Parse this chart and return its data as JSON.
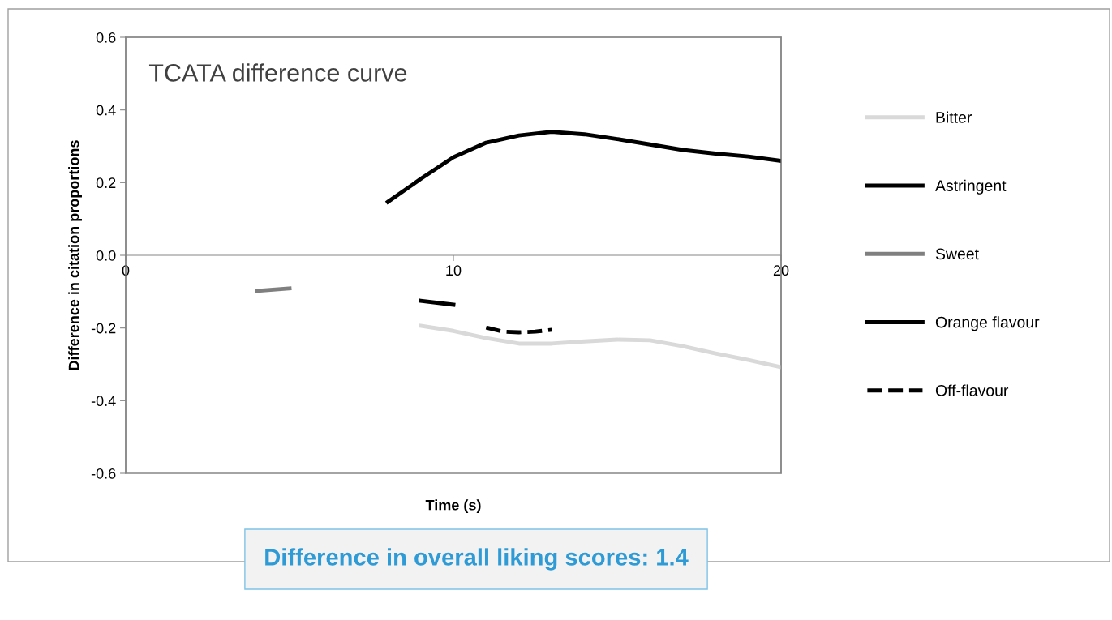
{
  "chart_data": {
    "type": "line",
    "title": "TCATA difference curve",
    "xlabel": "Time (s)",
    "ylabel": "Difference in citation proportions",
    "xlim": [
      0,
      20
    ],
    "xticks": [
      0,
      10,
      20
    ],
    "ylim": [
      -0.6,
      0.6
    ],
    "yticks": [
      0.6,
      0.4,
      0.2,
      {
        "value": 0,
        "label": "0.0"
      },
      -0.2,
      -0.4,
      -0.6
    ],
    "legend": "right",
    "grid": false,
    "marker": "none",
    "series": [
      {
        "name": "Bitter",
        "color": "#d9d9d9",
        "x": [
          9,
          10,
          11,
          12,
          13,
          14,
          15,
          16,
          17,
          18,
          19,
          20
        ],
        "values": [
          -0.194,
          -0.208,
          -0.228,
          -0.243,
          -0.243,
          -0.237,
          -0.232,
          -0.234,
          -0.25,
          -0.27,
          -0.288,
          -0.308
        ]
      },
      {
        "name": "Astringent",
        "color": "#000000",
        "x": [
          9,
          10
        ],
        "values": [
          -0.125,
          -0.136
        ]
      },
      {
        "name": "Sweet",
        "color": "#7f7f7f",
        "x": [
          4,
          5
        ],
        "values": [
          -0.098,
          -0.091
        ]
      },
      {
        "name": "Orange flavour",
        "color": "#000000",
        "x": [
          8,
          9,
          10,
          11,
          12,
          13,
          14,
          15,
          16,
          17,
          18,
          19,
          20
        ],
        "values": [
          0.147,
          0.21,
          0.27,
          0.31,
          0.33,
          0.34,
          0.333,
          0.32,
          0.305,
          0.29,
          0.28,
          0.272,
          0.26
        ]
      },
      {
        "name": "Off-flavour",
        "color": "#000000",
        "line_style": "dashed",
        "x": [
          11,
          11.5,
          12,
          12.5,
          13
        ],
        "values": [
          -0.199,
          -0.21,
          -0.212,
          -0.21,
          -0.205
        ]
      }
    ],
    "annotations": [
      "Difference in overall liking scores: 1.4"
    ]
  }
}
